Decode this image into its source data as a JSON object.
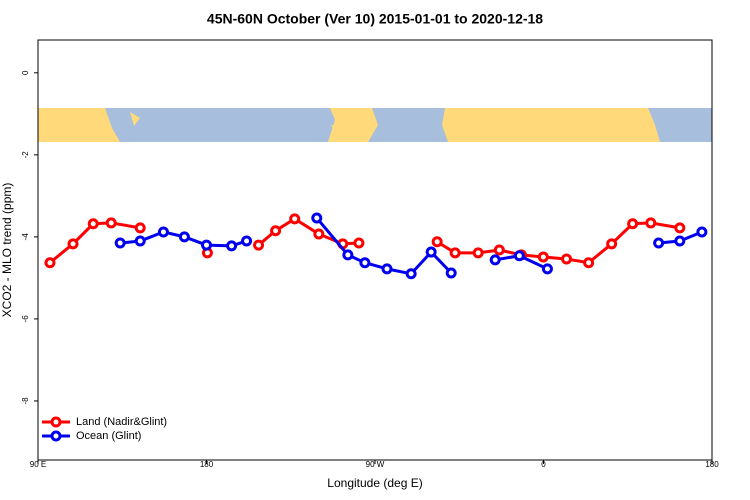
{
  "chart_data": {
    "type": "line",
    "title": "45N-60N October (Ver 10)   2015-01-01 to 2020-12-18",
    "x_label": "Longitude (deg E)",
    "y_label": "XCO2 - MLO trend (ppm)",
    "xlim": [
      90,
      450
    ],
    "xticks": [
      {
        "value": 90,
        "label": "90 E"
      },
      {
        "value": 180,
        "label": "180"
      },
      {
        "value": 270,
        "label": "90 W"
      },
      {
        "value": 360,
        "label": "0"
      },
      {
        "value": 450,
        "label": "180"
      }
    ],
    "ylim": [
      -9.44,
      0.8
    ],
    "yticks": [
      0,
      -2,
      -4,
      -6,
      -8
    ],
    "legend": "bottom-left",
    "series": [
      {
        "name": "Land (Nadir&Glint)",
        "color": "#ff0000",
        "x": [
          96.4,
          108.7,
          119.5,
          129.1,
          144.6,
          null,
          180.5,
          null,
          207.8,
          216.9,
          227.1,
          240.0,
          252.8,
          261.4,
          null,
          303.2,
          312.8,
          325.1,
          336.4,
          348.2,
          359.9,
          372.3,
          384.1,
          396.4,
          407.6,
          417.3,
          432.8
        ],
        "values": [
          -4.63,
          -4.17,
          -3.68,
          -3.66,
          -3.78,
          null,
          -4.39,
          null,
          -4.2,
          -3.85,
          -3.56,
          -3.93,
          -4.17,
          -4.15,
          null,
          -4.12,
          -4.39,
          -4.39,
          -4.32,
          -4.44,
          -4.49,
          -4.54,
          -4.63,
          -4.17,
          -3.68,
          -3.66,
          -3.78
        ]
      },
      {
        "name": "Ocean (Glint)",
        "color": "#0000ee",
        "x": [
          133.9,
          144.6,
          157.0,
          168.2,
          180.0,
          193.4,
          201.4,
          null,
          238.9,
          255.5,
          264.6,
          276.4,
          289.3,
          300.0,
          310.7,
          null,
          334.2,
          347.1,
          362.1,
          null,
          421.5,
          432.8,
          444.6
        ],
        "values": [
          -4.15,
          -4.1,
          -3.88,
          -4.0,
          -4.2,
          -4.22,
          -4.1,
          null,
          -3.54,
          -4.44,
          -4.63,
          -4.78,
          -4.9,
          -4.37,
          -4.88,
          null,
          -4.56,
          -4.46,
          -4.78,
          null,
          -4.15,
          -4.1,
          -3.88
        ]
      }
    ]
  }
}
